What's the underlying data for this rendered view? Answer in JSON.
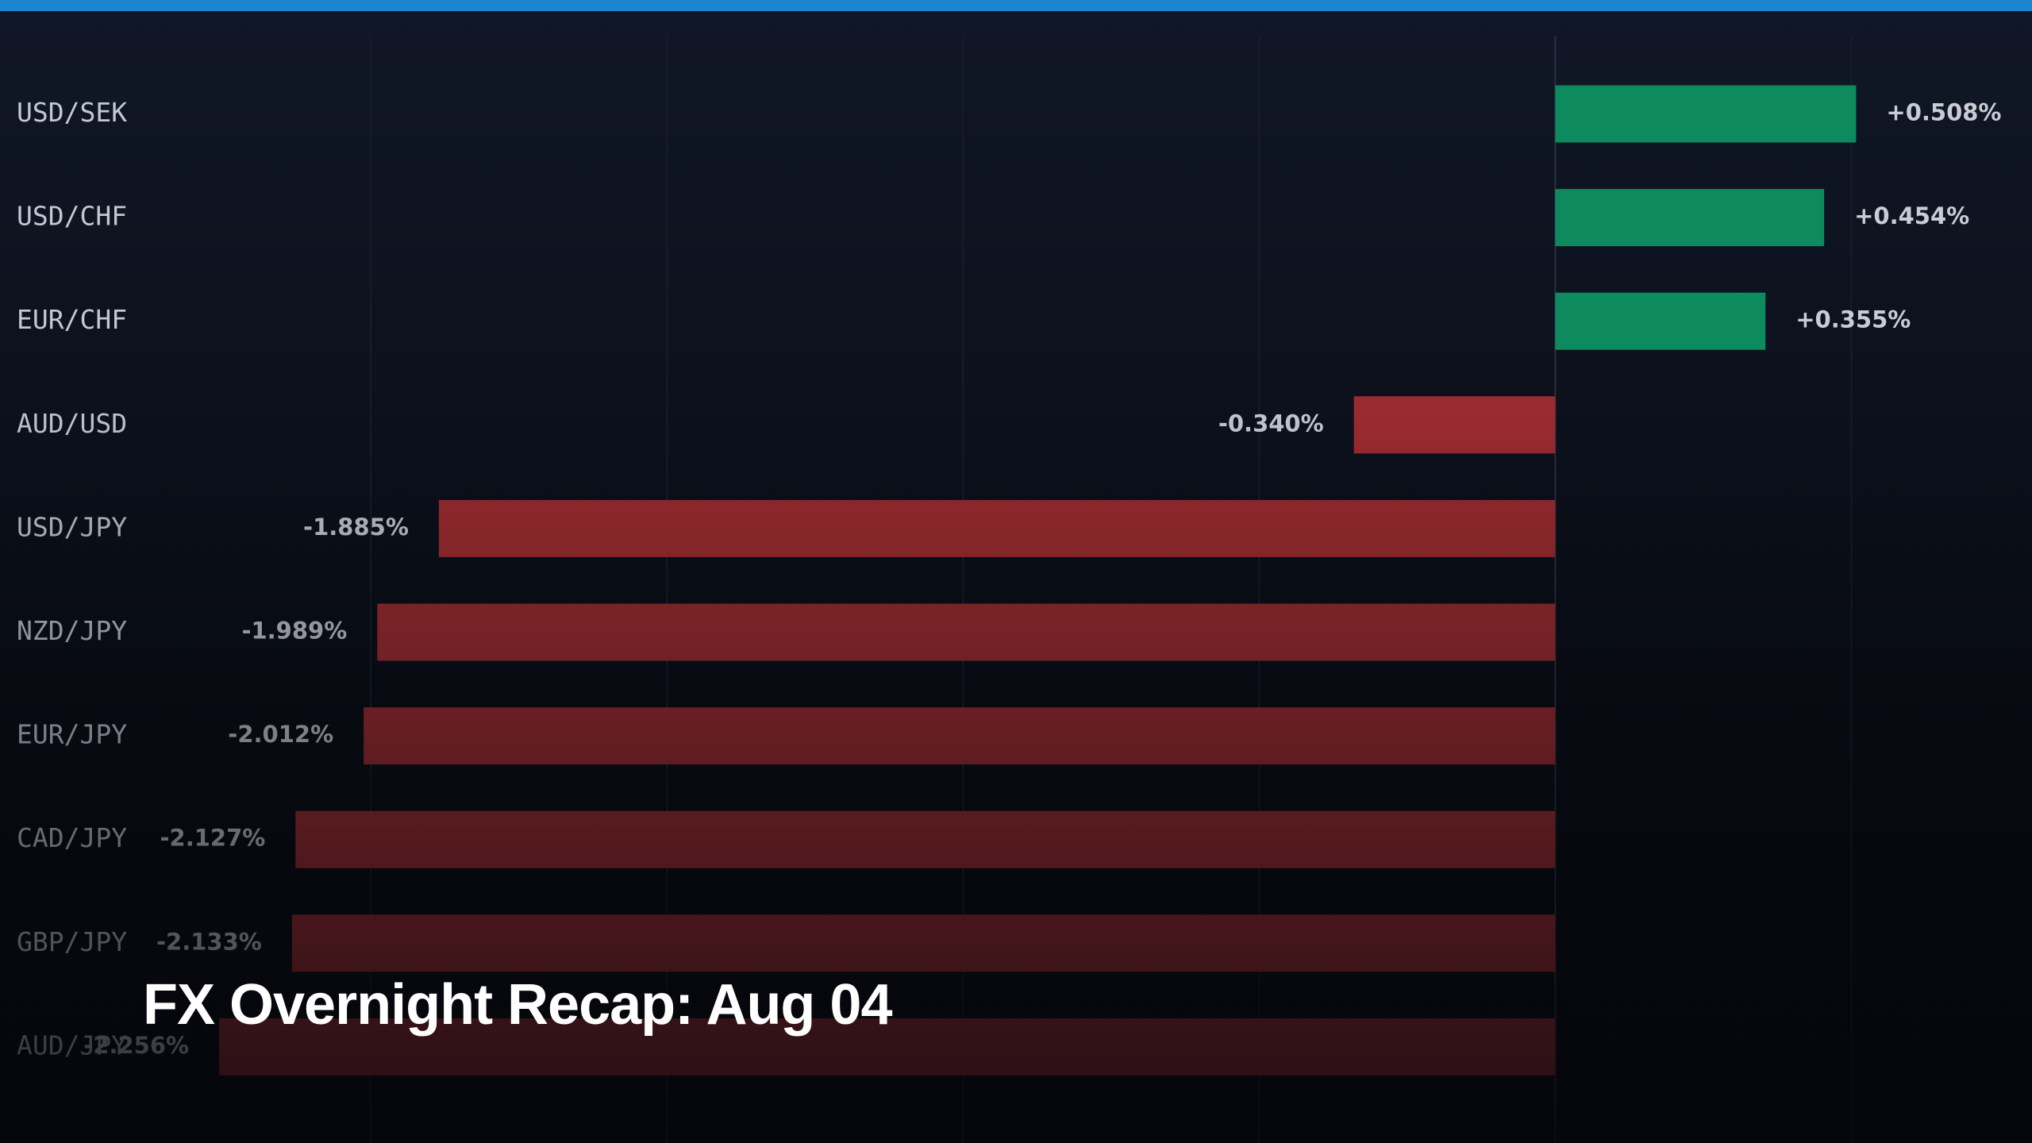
{
  "chart_data": {
    "type": "hbar",
    "title": "FX Overnight Recap: Aug 04",
    "categories": [
      "USD/SEK",
      "USD/CHF",
      "EUR/CHF",
      "AUD/USD",
      "USD/JPY",
      "NZD/JPY",
      "EUR/JPY",
      "CAD/JPY",
      "GBP/JPY",
      "AUD/JPY"
    ],
    "values": [
      0.508,
      0.454,
      0.355,
      -0.34,
      -1.885,
      -1.989,
      -2.012,
      -2.127,
      -2.133,
      -2.256
    ],
    "value_labels": [
      "+0.508%",
      "+0.454%",
      "+0.355%",
      "-0.340%",
      "-1.885%",
      "-1.989%",
      "-2.012%",
      "-2.127%",
      "-2.133%",
      "-2.256%"
    ],
    "positive_color": "#0e8a5f",
    "negative_color": "#a02c30",
    "xlim": [
      -2.626,
      0.805
    ],
    "xticks": [
      -2,
      -1.5,
      -1,
      -0.5,
      0,
      0.5
    ],
    "grid": true
  }
}
